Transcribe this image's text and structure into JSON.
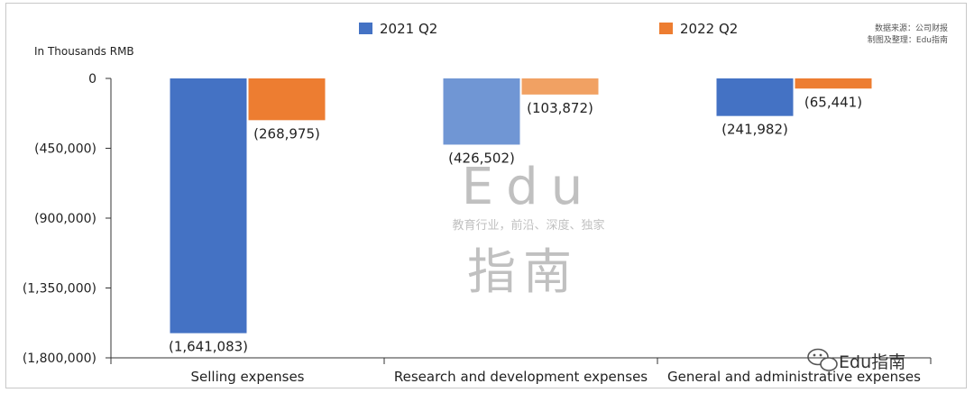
{
  "chart_data": {
    "type": "bar",
    "unit_label": "In Thousands RMB",
    "categories": [
      "Selling expenses",
      "Research and development expenses",
      "General and administrative expenses"
    ],
    "series": [
      {
        "name": "2021 Q2",
        "values": [
          -1641083,
          -426502,
          -241982
        ],
        "labels": [
          "(1,641,083)",
          "(426,502)",
          "(241,982)"
        ]
      },
      {
        "name": "2022 Q2",
        "values": [
          -268975,
          -103872,
          -65441
        ],
        "labels": [
          "(268,975)",
          "(103,872)",
          "(65,441)"
        ]
      }
    ],
    "ylim": [
      -1800000,
      0
    ],
    "y_ticks": [
      0,
      -450000,
      -900000,
      -1350000,
      -1800000
    ],
    "y_tick_labels": [
      "0",
      "(450,000)",
      "(900,000)",
      "(1,350,000)",
      "(1,800,000)"
    ],
    "legend_position": "top",
    "grid": false
  },
  "colors": {
    "series_2021": "#4472c4",
    "series_2022": "#ed7d31",
    "series_2021_light": "#7096d4",
    "series_2022_light": "#f1a163"
  },
  "source": {
    "line1": "数据来源：公司财报",
    "line2": "制图及整理：Edu指南"
  },
  "watermark": {
    "text_top": "Edu",
    "tagline": "教育行业，前沿、深度、独家",
    "text_bottom": "指南"
  },
  "brand": {
    "icon": "wechat-icon",
    "text": "Edu指南"
  }
}
